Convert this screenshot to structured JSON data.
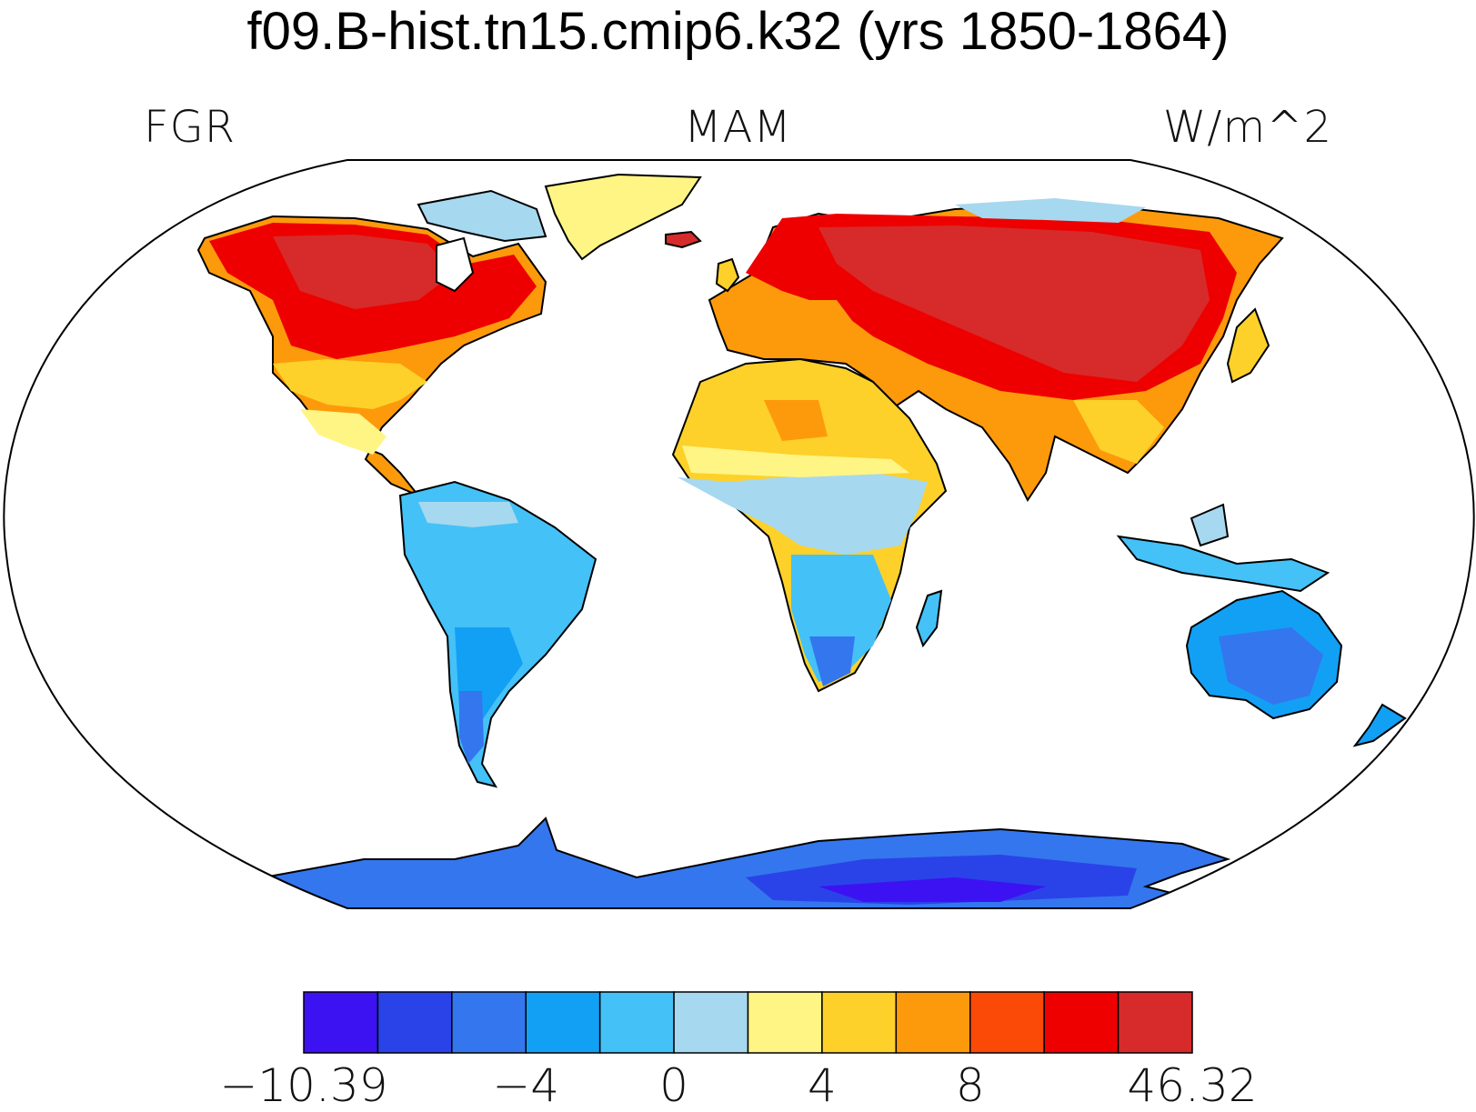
{
  "title": "f09.B-hist.tn15.cmip6.k32 (yrs 1850-1864)",
  "left_label": "FGR",
  "center_label": "MAM",
  "right_label": "W/m^2",
  "colorbar": {
    "colors": [
      "#3c12f2",
      "#2a43e8",
      "#3476ee",
      "#12a0f5",
      "#44c1f7",
      "#a6d8ef",
      "#fff584",
      "#fdd12a",
      "#fd9a0b",
      "#fb4a08",
      "#ee0000",
      "#d62b2a"
    ],
    "tick_labels": [
      {
        "text": "−10.39",
        "boundary": 0
      },
      {
        "text": "−4",
        "boundary": 3
      },
      {
        "text": "0",
        "boundary": 5
      },
      {
        "text": "4",
        "boundary": 7
      },
      {
        "text": "8",
        "boundary": 9
      },
      {
        "text": "46.32",
        "boundary": 12
      }
    ]
  }
}
